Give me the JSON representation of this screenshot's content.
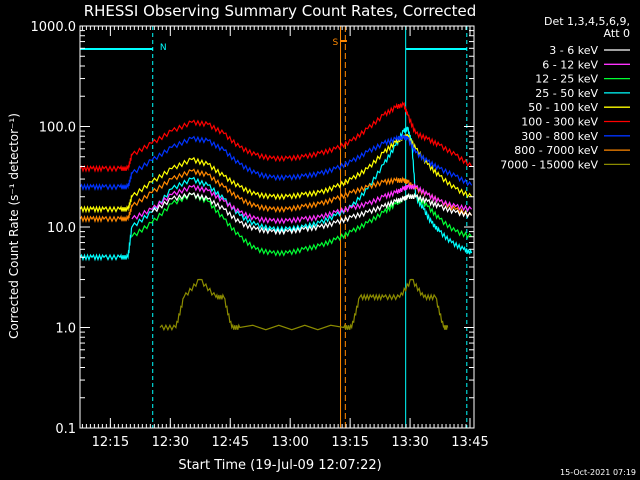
{
  "chart_data": {
    "type": "line",
    "title": "RHESSI Observing Summary Count Rates, Corrected",
    "xlabel": "Start Time (19-Jul-09 12:07:22)",
    "ylabel": "Corrected Count Rate (s⁻¹ detector⁻¹)",
    "yscale": "log",
    "ylim": [
      0.1,
      1000
    ],
    "xlim_minutes": [
      0,
      98.6
    ],
    "x_unit": "minutes after 12:07:22",
    "yticks": [
      "0.1",
      "1.0",
      "10.0",
      "100.0",
      "1000.0"
    ],
    "xticks": [
      "12:15",
      "12:30",
      "12:45",
      "13:00",
      "13:15",
      "13:30",
      "13:45"
    ],
    "xtick_minutes": [
      7.6,
      22.6,
      37.6,
      52.6,
      67.6,
      82.6,
      97.6
    ],
    "grid": false,
    "legend_header": [
      "Det 1,3,4,5,6,9,",
      "Att 0"
    ],
    "series": [
      {
        "name": "3 - 6 keV",
        "color": "#ffffff",
        "x": [
          0,
          12,
          13,
          18,
          23,
          28,
          32,
          36,
          40,
          44,
          48,
          52,
          56,
          60,
          64,
          68,
          72,
          76,
          79,
          81,
          82,
          84,
          87,
          90,
          94,
          98
        ],
        "y": [
          null,
          null,
          null,
          14,
          19,
          21,
          19,
          15,
          11,
          9.5,
          9,
          9,
          9.5,
          10,
          11,
          12.5,
          14,
          16,
          18,
          19,
          20,
          20,
          18,
          16,
          14,
          13
        ]
      },
      {
        "name": "6 - 12 keV",
        "color": "#ff33ff",
        "x": [
          0,
          12,
          13,
          18,
          23,
          28,
          32,
          36,
          40,
          44,
          48,
          52,
          56,
          60,
          64,
          68,
          72,
          76,
          79,
          81,
          82,
          84,
          87,
          90,
          94,
          98
        ],
        "y": [
          null,
          null,
          12,
          15,
          21,
          25,
          23,
          18,
          14,
          12,
          11.5,
          11.5,
          12,
          12.5,
          14,
          15.5,
          17,
          20,
          22,
          24,
          25,
          25,
          21,
          18,
          16,
          15
        ]
      },
      {
        "name": "12 - 25 keV",
        "color": "#00ff33",
        "x": [
          0,
          12,
          13,
          18,
          23,
          28,
          32,
          36,
          40,
          44,
          48,
          52,
          56,
          60,
          64,
          68,
          72,
          76,
          79,
          81,
          82,
          84,
          87,
          90,
          94,
          98
        ],
        "y": [
          null,
          null,
          8,
          11,
          17,
          21,
          18,
          12,
          8,
          6,
          5.5,
          5.5,
          6,
          6.5,
          7.5,
          9,
          11,
          14,
          17,
          19,
          20,
          20,
          16,
          12,
          9,
          8
        ]
      },
      {
        "name": "25 - 50 keV",
        "color": "#00ffff",
        "x": [
          0,
          3,
          6,
          10,
          12,
          13,
          18,
          23,
          28,
          32,
          36,
          40,
          44,
          48,
          52,
          56,
          60,
          64,
          68,
          72,
          76,
          79,
          81,
          82,
          83,
          84,
          86,
          88,
          90,
          93,
          96,
          98
        ],
        "y": [
          5,
          5,
          5,
          5,
          5,
          10,
          14,
          24,
          30,
          26,
          19,
          13,
          10.5,
          9.5,
          9.5,
          10,
          11,
          13,
          16,
          24,
          42,
          65,
          90,
          95,
          70,
          20,
          15,
          11,
          9,
          7,
          6,
          5.5
        ]
      },
      {
        "name": "50 - 100 keV",
        "color": "#ffff00",
        "x": [
          0,
          3,
          6,
          10,
          12,
          13,
          18,
          23,
          28,
          32,
          36,
          40,
          44,
          48,
          52,
          56,
          60,
          64,
          68,
          72,
          76,
          79,
          81,
          82,
          84,
          87,
          90,
          94,
          98
        ],
        "y": [
          15,
          15,
          15,
          15,
          15,
          20,
          28,
          38,
          47,
          42,
          32,
          25,
          21,
          20,
          20,
          21,
          22,
          25,
          30,
          38,
          55,
          70,
          78,
          80,
          60,
          42,
          32,
          24,
          20
        ]
      },
      {
        "name": "100 - 300 keV",
        "color": "#ff0000",
        "x": [
          0,
          3,
          6,
          10,
          12,
          13,
          18,
          23,
          28,
          32,
          36,
          40,
          44,
          48,
          52,
          56,
          60,
          64,
          68,
          72,
          76,
          79,
          81,
          82,
          84,
          87,
          90,
          94,
          98
        ],
        "y": [
          38,
          38,
          38,
          38,
          38,
          52,
          68,
          90,
          110,
          105,
          85,
          62,
          52,
          48,
          48,
          50,
          54,
          60,
          72,
          95,
          130,
          155,
          165,
          130,
          85,
          75,
          65,
          52,
          40
        ]
      },
      {
        "name": "300 - 800 keV",
        "color": "#0033ff",
        "x": [
          0,
          3,
          6,
          10,
          12,
          13,
          18,
          23,
          28,
          32,
          36,
          40,
          44,
          48,
          52,
          56,
          60,
          64,
          68,
          72,
          76,
          79,
          81,
          82,
          84,
          87,
          90,
          94,
          98
        ],
        "y": [
          25,
          25,
          25,
          25,
          25,
          34,
          46,
          62,
          76,
          72,
          58,
          42,
          34,
          31,
          31,
          32,
          34,
          38,
          45,
          56,
          68,
          75,
          78,
          76,
          55,
          45,
          38,
          32,
          26
        ]
      },
      {
        "name": "800 - 7000 keV",
        "color": "#ff8800",
        "x": [
          0,
          3,
          6,
          10,
          12,
          13,
          18,
          23,
          28,
          32,
          36,
          40,
          44,
          48,
          52,
          56,
          60,
          64,
          68,
          72,
          76,
          79,
          81,
          82,
          84,
          87,
          90,
          94,
          98
        ],
        "y": [
          12,
          12,
          12,
          12,
          12,
          16,
          22,
          30,
          36,
          33,
          25,
          19,
          16,
          15,
          15,
          16,
          17,
          19,
          22,
          25,
          28,
          29,
          29,
          28,
          24,
          21,
          18,
          15,
          13
        ]
      },
      {
        "name": "7000 - 15000 keV",
        "color": "#8b8b00",
        "x": [
          20,
          24,
          26,
          30,
          34,
          36,
          38,
          40,
          66,
          68,
          70,
          73,
          76,
          80,
          83,
          86,
          89,
          91,
          92
        ],
        "y": [
          1,
          1,
          2,
          3,
          2,
          2,
          1,
          1,
          1,
          1,
          2,
          2,
          2,
          2,
          3,
          2,
          2,
          1,
          1
        ]
      }
    ],
    "annotations": [
      {
        "label": "N",
        "color": "#00ffff"
      },
      {
        "label": "S",
        "color": "#ff8800"
      }
    ],
    "footer_date": "15-Oct-2021 07:19"
  }
}
